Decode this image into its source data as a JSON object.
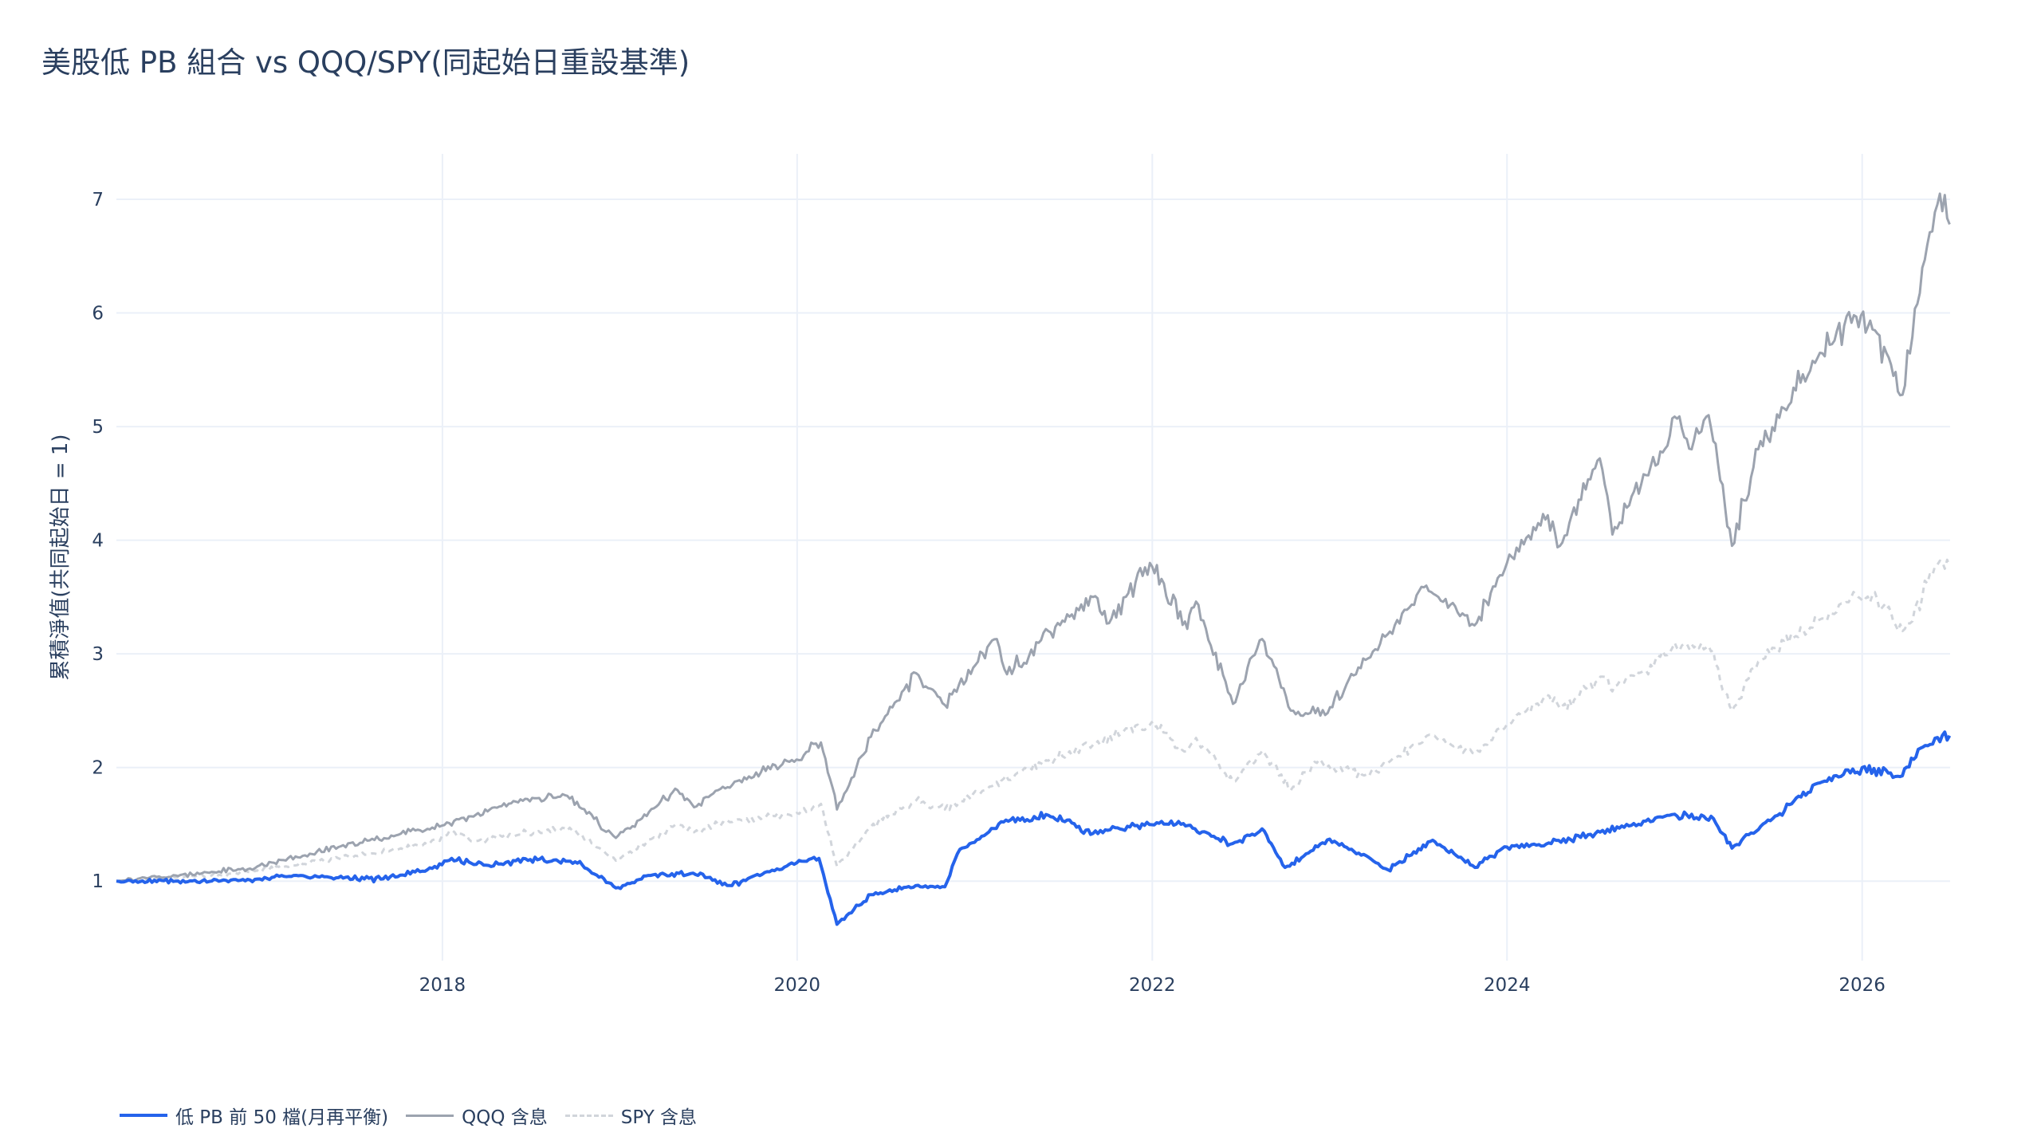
{
  "chart_data": {
    "type": "line",
    "title": "美股低 PB 組合 vs QQQ/SPY(同起始日重設基準)",
    "xlabel": "",
    "ylabel": "累積淨值(共同起始日 = 1)",
    "xlim": [
      "2016-03-01",
      "2026-07-01"
    ],
    "ylim": [
      0.3,
      7.4
    ],
    "x_ticks": [
      "2018",
      "2020",
      "2022",
      "2024",
      "2026"
    ],
    "y_ticks": [
      "1",
      "2",
      "3",
      "4",
      "5",
      "6",
      "7"
    ],
    "grid": true,
    "legend_position": "bottom-left",
    "legend_orientation": "horizontal",
    "series": [
      {
        "name": "低 PB 前 50 檔(月再平衡)",
        "color": "#2563eb",
        "style": "solid",
        "points": [
          [
            "2016-03-01",
            1.0
          ],
          [
            "2016-07-01",
            1.0
          ],
          [
            "2016-12-01",
            1.01
          ],
          [
            "2017-03-01",
            1.05
          ],
          [
            "2017-06-01",
            1.03
          ],
          [
            "2017-09-01",
            1.02
          ],
          [
            "2017-12-01",
            1.1
          ],
          [
            "2018-01-20",
            1.2
          ],
          [
            "2018-04-01",
            1.14
          ],
          [
            "2018-07-01",
            1.19
          ],
          [
            "2018-10-01",
            1.17
          ],
          [
            "2018-12-24",
            0.94
          ],
          [
            "2019-03-01",
            1.05
          ],
          [
            "2019-06-01",
            1.07
          ],
          [
            "2019-08-20",
            0.96
          ],
          [
            "2019-10-01",
            1.04
          ],
          [
            "2019-12-31",
            1.16
          ],
          [
            "2020-02-15",
            1.2
          ],
          [
            "2020-03-23",
            0.62
          ],
          [
            "2020-06-01",
            0.88
          ],
          [
            "2020-09-01",
            0.96
          ],
          [
            "2020-10-31",
            0.95
          ],
          [
            "2020-12-01",
            1.28
          ],
          [
            "2021-03-01",
            1.52
          ],
          [
            "2021-06-01",
            1.58
          ],
          [
            "2021-09-01",
            1.42
          ],
          [
            "2021-12-01",
            1.49
          ],
          [
            "2022-03-01",
            1.5
          ],
          [
            "2022-06-15",
            1.33
          ],
          [
            "2022-08-15",
            1.46
          ],
          [
            "2022-10-01",
            1.12
          ],
          [
            "2023-01-01",
            1.37
          ],
          [
            "2023-05-01",
            1.1
          ],
          [
            "2023-08-01",
            1.36
          ],
          [
            "2023-10-27",
            1.12
          ],
          [
            "2024-01-01",
            1.3
          ],
          [
            "2024-04-01",
            1.33
          ],
          [
            "2024-07-01",
            1.42
          ],
          [
            "2024-12-01",
            1.58
          ],
          [
            "2025-03-01",
            1.55
          ],
          [
            "2025-04-08",
            1.29
          ],
          [
            "2025-07-01",
            1.55
          ],
          [
            "2025-10-01",
            1.86
          ],
          [
            "2026-01-01",
            2.0
          ],
          [
            "2026-03-20",
            1.92
          ],
          [
            "2026-05-01",
            2.17
          ],
          [
            "2026-06-30",
            2.28
          ]
        ]
      },
      {
        "name": "QQQ 含息",
        "color": "#9ca3af",
        "style": "solid",
        "points": [
          [
            "2016-03-01",
            1.0
          ],
          [
            "2016-07-01",
            1.05
          ],
          [
            "2016-12-01",
            1.11
          ],
          [
            "2017-06-01",
            1.3
          ],
          [
            "2017-12-01",
            1.46
          ],
          [
            "2018-03-01",
            1.57
          ],
          [
            "2018-06-01",
            1.7
          ],
          [
            "2018-09-15",
            1.75
          ],
          [
            "2018-12-24",
            1.38
          ],
          [
            "2019-04-30",
            1.8
          ],
          [
            "2019-06-03",
            1.65
          ],
          [
            "2019-08-01",
            1.83
          ],
          [
            "2019-12-31",
            2.07
          ],
          [
            "2020-02-19",
            2.22
          ],
          [
            "2020-03-23",
            1.63
          ],
          [
            "2020-06-01",
            2.27
          ],
          [
            "2020-09-02",
            2.83
          ],
          [
            "2020-10-31",
            2.55
          ],
          [
            "2021-02-15",
            3.13
          ],
          [
            "2021-03-08",
            2.82
          ],
          [
            "2021-06-01",
            3.2
          ],
          [
            "2021-09-01",
            3.5
          ],
          [
            "2021-10-04",
            3.27
          ],
          [
            "2021-12-27",
            3.8
          ],
          [
            "2022-03-14",
            3.22
          ],
          [
            "2022-04-01",
            3.46
          ],
          [
            "2022-06-16",
            2.56
          ],
          [
            "2022-08-15",
            3.13
          ],
          [
            "2022-10-13",
            2.5
          ],
          [
            "2022-12-28",
            2.48
          ],
          [
            "2023-03-01",
            2.88
          ],
          [
            "2023-07-19",
            3.6
          ],
          [
            "2023-10-26",
            3.25
          ],
          [
            "2024-01-01",
            3.8
          ],
          [
            "2024-03-25",
            4.22
          ],
          [
            "2024-04-19",
            3.95
          ],
          [
            "2024-07-10",
            4.72
          ],
          [
            "2024-08-05",
            4.05
          ],
          [
            "2024-12-16",
            5.07
          ],
          [
            "2025-01-15",
            4.8
          ],
          [
            "2025-02-19",
            5.1
          ],
          [
            "2025-04-08",
            3.95
          ],
          [
            "2025-06-01",
            4.8
          ],
          [
            "2025-09-01",
            5.46
          ],
          [
            "2025-12-15",
            5.98
          ],
          [
            "2026-02-01",
            5.82
          ],
          [
            "2026-03-25",
            5.28
          ],
          [
            "2026-05-15",
            6.6
          ],
          [
            "2026-06-10",
            7.05
          ],
          [
            "2026-06-30",
            6.78
          ]
        ]
      },
      {
        "name": "SPY 含息",
        "color": "#d1d5db",
        "style": "dashed",
        "points": [
          [
            "2016-03-01",
            1.0
          ],
          [
            "2016-07-01",
            1.03
          ],
          [
            "2016-12-01",
            1.08
          ],
          [
            "2017-06-01",
            1.2
          ],
          [
            "2017-12-01",
            1.32
          ],
          [
            "2018-01-26",
            1.43
          ],
          [
            "2018-03-01",
            1.35
          ],
          [
            "2018-09-20",
            1.47
          ],
          [
            "2018-12-24",
            1.18
          ],
          [
            "2019-04-30",
            1.5
          ],
          [
            "2019-06-03",
            1.43
          ],
          [
            "2019-08-01",
            1.52
          ],
          [
            "2019-12-31",
            1.6
          ],
          [
            "2020-02-19",
            1.68
          ],
          [
            "2020-03-23",
            1.13
          ],
          [
            "2020-06-01",
            1.48
          ],
          [
            "2020-09-02",
            1.71
          ],
          [
            "2020-10-31",
            1.63
          ],
          [
            "2021-03-01",
            1.9
          ],
          [
            "2021-06-01",
            2.06
          ],
          [
            "2021-09-01",
            2.2
          ],
          [
            "2021-12-31",
            2.4
          ],
          [
            "2022-03-08",
            2.14
          ],
          [
            "2022-04-01",
            2.26
          ],
          [
            "2022-06-16",
            1.88
          ],
          [
            "2022-08-16",
            2.15
          ],
          [
            "2022-10-13",
            1.8
          ],
          [
            "2022-12-01",
            2.05
          ],
          [
            "2023-03-13",
            1.93
          ],
          [
            "2023-07-31",
            2.28
          ],
          [
            "2023-10-27",
            2.12
          ],
          [
            "2024-01-01",
            2.38
          ],
          [
            "2024-03-28",
            2.63
          ],
          [
            "2024-04-19",
            2.52
          ],
          [
            "2024-07-16",
            2.8
          ],
          [
            "2024-08-05",
            2.67
          ],
          [
            "2024-12-06",
            3.05
          ],
          [
            "2025-02-19",
            3.07
          ],
          [
            "2025-04-08",
            2.5
          ],
          [
            "2025-06-01",
            2.93
          ],
          [
            "2025-09-01",
            3.22
          ],
          [
            "2025-12-24",
            3.5
          ],
          [
            "2026-02-01",
            3.48
          ],
          [
            "2026-03-30",
            3.22
          ],
          [
            "2026-05-15",
            3.62
          ],
          [
            "2026-06-10",
            3.82
          ],
          [
            "2026-06-30",
            3.77
          ]
        ]
      }
    ]
  }
}
